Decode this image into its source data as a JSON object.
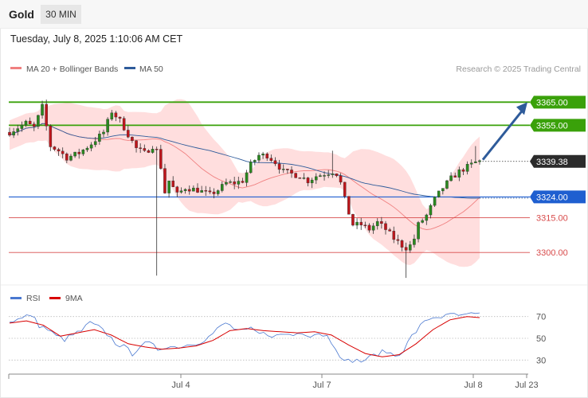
{
  "header": {
    "symbol": "Gold",
    "timeframe": "30 MIN",
    "datetime": "Tuesday, July 8, 2025 1:10:06 AM CET"
  },
  "legend": {
    "ma20_label": "MA 20 + Bollinger Bands",
    "ma50_label": "MA 50",
    "copyright": "Research © 2025 Trading Central",
    "colors": {
      "ma20": "#f08080",
      "ma50": "#2e5b9a",
      "band": "#ffdede"
    }
  },
  "rsi_legend": {
    "rsi_label": "RSI",
    "ma9_label": "9MA",
    "colors": {
      "rsi": "#4a78d0",
      "ma9": "#d80000"
    }
  },
  "chart_data": [
    {
      "type": "candlestick",
      "title": "",
      "ylim": [
        3288,
        3372
      ],
      "x_ticks": [
        "Jul 4",
        "Jul 7",
        "Jul 8",
        "Jul 23"
      ],
      "current_price": "3339.38",
      "levels": [
        {
          "label": "3365.00",
          "value": 3365.0,
          "kind": "resistance",
          "color": "#3aa10a"
        },
        {
          "label": "3355.00",
          "value": 3355.0,
          "kind": "resistance",
          "color": "#3aa10a"
        },
        {
          "label": "3324.00",
          "value": 3324.0,
          "kind": "pivot",
          "color": "#1f5fd0"
        },
        {
          "label": "3315.00",
          "value": 3315.0,
          "kind": "support",
          "color": "#d84b4b"
        },
        {
          "label": "3300.00",
          "value": 3300.0,
          "kind": "support",
          "color": "#d84b4b"
        }
      ],
      "arrow": {
        "from": 3339.4,
        "to": 3365.0,
        "color": "#2e5b9a"
      },
      "anchors": [
        [
          0,
          3352
        ],
        [
          4,
          3356
        ],
        [
          6,
          3354
        ],
        [
          8,
          3363
        ],
        [
          10,
          3346
        ],
        [
          12,
          3344
        ],
        [
          14,
          3341
        ],
        [
          17,
          3343
        ],
        [
          20,
          3347
        ],
        [
          23,
          3352
        ],
        [
          25,
          3361
        ],
        [
          27,
          3357
        ],
        [
          29,
          3351
        ],
        [
          31,
          3345
        ],
        [
          33,
          3343
        ],
        [
          35,
          3346
        ],
        [
          36,
          3344
        ],
        [
          37,
          3337
        ],
        [
          38,
          3326
        ],
        [
          39,
          3331
        ],
        [
          41,
          3325
        ],
        [
          43,
          3328
        ],
        [
          46,
          3327
        ],
        [
          49,
          3325
        ],
        [
          51,
          3327
        ],
        [
          53,
          3330
        ],
        [
          55,
          3330
        ],
        [
          57,
          3331
        ],
        [
          59,
          3338
        ],
        [
          61,
          3342
        ],
        [
          63,
          3342
        ],
        [
          65,
          3339
        ],
        [
          67,
          3335
        ],
        [
          69,
          3334
        ],
        [
          71,
          3333
        ],
        [
          73,
          3331
        ],
        [
          75,
          3333
        ],
        [
          77,
          3334
        ],
        [
          79,
          3335
        ],
        [
          80,
          3334
        ],
        [
          81,
          3330
        ],
        [
          82,
          3323
        ],
        [
          83,
          3317
        ],
        [
          84,
          3312
        ],
        [
          86,
          3312
        ],
        [
          88,
          3310
        ],
        [
          90,
          3313
        ],
        [
          92,
          3310
        ],
        [
          94,
          3306
        ],
        [
          96,
          3303
        ],
        [
          97,
          3302
        ],
        [
          98,
          3303
        ],
        [
          99,
          3306
        ],
        [
          100,
          3312
        ],
        [
          102,
          3316
        ],
        [
          104,
          3323
        ],
        [
          106,
          3328
        ],
        [
          108,
          3332
        ],
        [
          110,
          3335
        ],
        [
          112,
          3337
        ],
        [
          114,
          3339
        ],
        [
          115,
          3339.4
        ]
      ]
    },
    {
      "type": "line",
      "title": "",
      "ylim": [
        20,
        80
      ],
      "y_ticks": [
        70,
        50,
        30
      ],
      "series": [
        {
          "name": "RSI",
          "anchors": [
            [
              0,
              66
            ],
            [
              3,
              68
            ],
            [
              5,
              72
            ],
            [
              7,
              62
            ],
            [
              9,
              58
            ],
            [
              11,
              52
            ],
            [
              13,
              49
            ],
            [
              15,
              53
            ],
            [
              17,
              57
            ],
            [
              19,
              64
            ],
            [
              21,
              60
            ],
            [
              23,
              54
            ],
            [
              25,
              46
            ],
            [
              27,
              42
            ],
            [
              29,
              36
            ],
            [
              31,
              44
            ],
            [
              33,
              45
            ],
            [
              35,
              40
            ],
            [
              37,
              43
            ],
            [
              39,
              42
            ],
            [
              41,
              43
            ],
            [
              43,
              45
            ],
            [
              45,
              47
            ],
            [
              47,
              51
            ],
            [
              49,
              58
            ],
            [
              51,
              64
            ],
            [
              53,
              59
            ],
            [
              55,
              56
            ],
            [
              57,
              58
            ],
            [
              59,
              54
            ],
            [
              61,
              54
            ],
            [
              63,
              52
            ],
            [
              65,
              54
            ],
            [
              67,
              53
            ],
            [
              69,
              56
            ],
            [
              71,
              53
            ],
            [
              73,
              55
            ],
            [
              75,
              52
            ],
            [
              77,
              42
            ],
            [
              79,
              28
            ],
            [
              81,
              30
            ],
            [
              83,
              29
            ],
            [
              85,
              32
            ],
            [
              87,
              36
            ],
            [
              89,
              38
            ],
            [
              91,
              34
            ],
            [
              93,
              39
            ],
            [
              95,
              52
            ],
            [
              97,
              61
            ],
            [
              99,
              68
            ],
            [
              101,
              70
            ],
            [
              103,
              70
            ],
            [
              105,
              72
            ],
            [
              107,
              70
            ],
            [
              109,
              72
            ],
            [
              111,
              71
            ]
          ]
        },
        {
          "name": "9MA",
          "anchors": [
            [
              0,
              64
            ],
            [
              4,
              66
            ],
            [
              8,
              62
            ],
            [
              12,
              52
            ],
            [
              16,
              55
            ],
            [
              20,
              58
            ],
            [
              24,
              53
            ],
            [
              28,
              45
            ],
            [
              32,
              42
            ],
            [
              36,
              40
            ],
            [
              40,
              41
            ],
            [
              44,
              43
            ],
            [
              48,
              48
            ],
            [
              52,
              57
            ],
            [
              56,
              59
            ],
            [
              60,
              57
            ],
            [
              64,
              56
            ],
            [
              68,
              55
            ],
            [
              72,
              56
            ],
            [
              76,
              53
            ],
            [
              80,
              44
            ],
            [
              84,
              36
            ],
            [
              88,
              33
            ],
            [
              92,
              35
            ],
            [
              96,
              45
            ],
            [
              100,
              58
            ],
            [
              104,
              67
            ],
            [
              108,
              70
            ],
            [
              111,
              69
            ]
          ]
        }
      ]
    }
  ]
}
